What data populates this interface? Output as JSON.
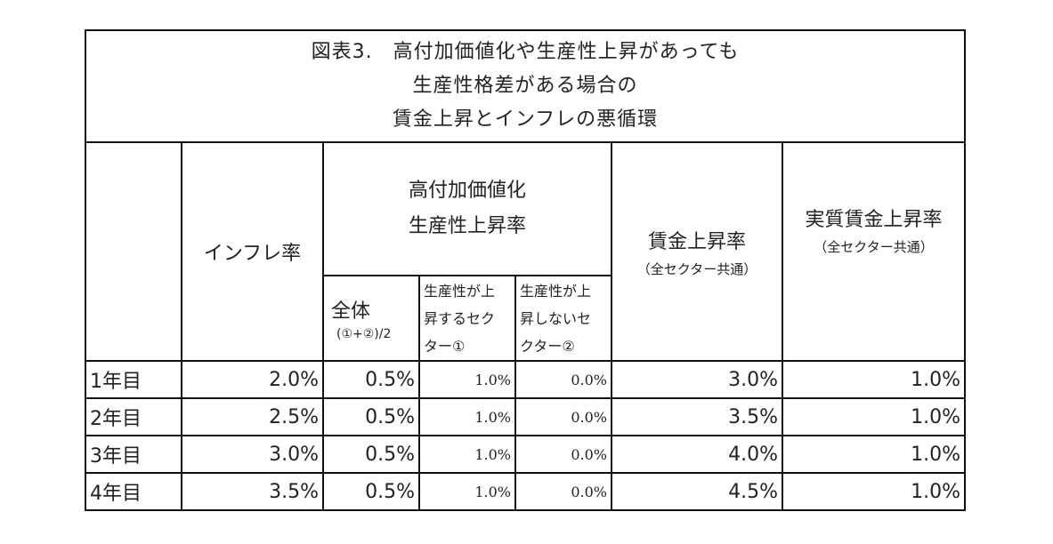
{
  "title": {
    "line1": "図表3.　高付加価値化や生産性上昇があっても",
    "line2": "生産性格差がある場合の",
    "line3": "賃金上昇とインフレの悪循環"
  },
  "headers": {
    "inflation": "インフレ率",
    "productivity_line1": "高付加価値化",
    "productivity_line2": "生産性上昇率",
    "all_label": "全体",
    "all_formula": "(①+②)/2",
    "rising_line1": "生産性が上",
    "rising_line2": "昇するセク",
    "rising_line3": "ター①",
    "nonrising_line1": "生産性が上",
    "nonrising_line2": "昇しないセ",
    "nonrising_line3": "クター②",
    "wage": "賃金上昇率",
    "wage_note": "（全セクター共通）",
    "real_wage": "実質賃金上昇率",
    "real_wage_note": "（全セクター共通）"
  },
  "rows": [
    {
      "year": "1年目",
      "inflation": "2.0%",
      "all": "0.5%",
      "rising": "1.0%",
      "nonrising": "0.0%",
      "wage": "3.0%",
      "real_wage": "1.0%"
    },
    {
      "year": "2年目",
      "inflation": "2.5%",
      "all": "0.5%",
      "rising": "1.0%",
      "nonrising": "0.0%",
      "wage": "3.5%",
      "real_wage": "1.0%"
    },
    {
      "year": "3年目",
      "inflation": "3.0%",
      "all": "0.5%",
      "rising": "1.0%",
      "nonrising": "0.0%",
      "wage": "4.0%",
      "real_wage": "1.0%"
    },
    {
      "year": "4年目",
      "inflation": "3.5%",
      "all": "0.5%",
      "rising": "1.0%",
      "nonrising": "0.0%",
      "wage": "4.5%",
      "real_wage": "1.0%"
    }
  ]
}
